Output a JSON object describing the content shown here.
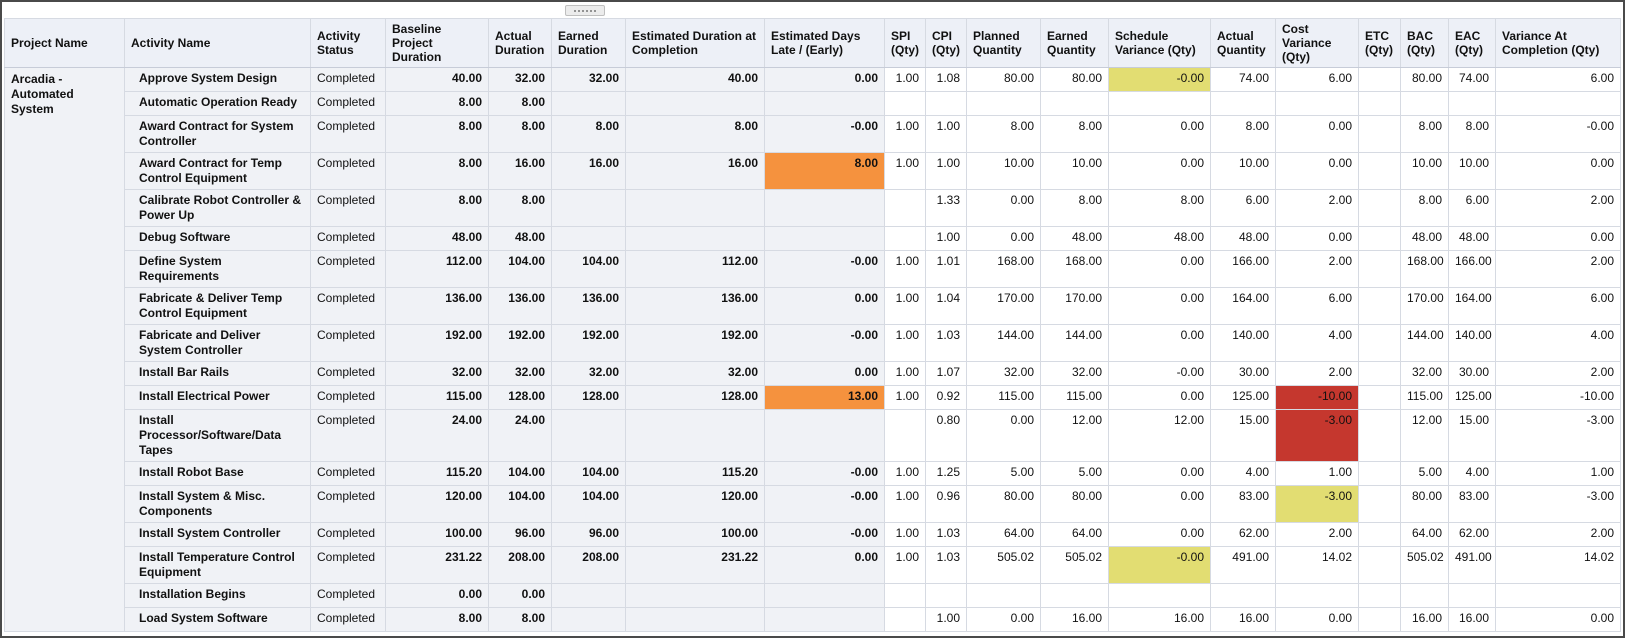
{
  "project": {
    "name": "Arcadia - Automated System"
  },
  "colors": {
    "yellow": "#e2dd72",
    "orange": "#f5923e",
    "red": "#c5372e",
    "left_bg": "#f0f2f6",
    "header_bg": "#edf0f7"
  },
  "table": {
    "headers": [
      "Project Name",
      "Activity Name",
      "Activity Status",
      "Baseline Project Duration",
      "Actual Duration",
      "Earned Duration",
      "Estimated Duration at Completion",
      "Estimated Days Late / (Early)",
      "SPI (Qty)",
      "CPI (Qty)",
      "Planned Quantity",
      "Earned Quantity",
      "Schedule Variance (Qty)",
      "Actual Quantity",
      "Cost Variance (Qty)",
      "ETC (Qty)",
      "BAC (Qty)",
      "EAC (Qty)",
      "Variance At Completion (Qty)"
    ],
    "rows": [
      {
        "activity": "Approve System Design",
        "status": "Completed",
        "baseline": "40.00",
        "actual_dur": "32.00",
        "earned_dur": "32.00",
        "est_completion": "40.00",
        "days_late": "0.00",
        "spi": "1.00",
        "cpi": "1.08",
        "planned_qty": "80.00",
        "earned_qty": "80.00",
        "sched_var": "-0.00",
        "actual_qty": "74.00",
        "cost_var": "6.00",
        "etc": "",
        "bac": "80.00",
        "eac": "74.00",
        "vac": "6.00",
        "hl": {
          "sched_var": "yellow"
        }
      },
      {
        "activity": "Automatic Operation Ready",
        "status": "Completed",
        "baseline": "8.00",
        "actual_dur": "8.00",
        "earned_dur": "",
        "est_completion": "",
        "days_late": "",
        "spi": "",
        "cpi": "",
        "planned_qty": "",
        "earned_qty": "",
        "sched_var": "",
        "actual_qty": "",
        "cost_var": "",
        "etc": "",
        "bac": "",
        "eac": "",
        "vac": ""
      },
      {
        "activity": "Award Contract for System Controller",
        "status": "Completed",
        "baseline": "8.00",
        "actual_dur": "8.00",
        "earned_dur": "8.00",
        "est_completion": "8.00",
        "days_late": "-0.00",
        "spi": "1.00",
        "cpi": "1.00",
        "planned_qty": "8.00",
        "earned_qty": "8.00",
        "sched_var": "0.00",
        "actual_qty": "8.00",
        "cost_var": "0.00",
        "etc": "",
        "bac": "8.00",
        "eac": "8.00",
        "vac": "-0.00"
      },
      {
        "activity": "Award Contract for Temp Control Equipment",
        "status": "Completed",
        "baseline": "8.00",
        "actual_dur": "16.00",
        "earned_dur": "16.00",
        "est_completion": "16.00",
        "days_late": "8.00",
        "spi": "1.00",
        "cpi": "1.00",
        "planned_qty": "10.00",
        "earned_qty": "10.00",
        "sched_var": "0.00",
        "actual_qty": "10.00",
        "cost_var": "0.00",
        "etc": "",
        "bac": "10.00",
        "eac": "10.00",
        "vac": "0.00",
        "hl": {
          "days_late": "orange"
        }
      },
      {
        "activity": "Calibrate Robot Controller & Power Up",
        "status": "Completed",
        "baseline": "8.00",
        "actual_dur": "8.00",
        "earned_dur": "",
        "est_completion": "",
        "days_late": "",
        "spi": "",
        "cpi": "1.33",
        "planned_qty": "0.00",
        "earned_qty": "8.00",
        "sched_var": "8.00",
        "actual_qty": "6.00",
        "cost_var": "2.00",
        "etc": "",
        "bac": "8.00",
        "eac": "6.00",
        "vac": "2.00"
      },
      {
        "activity": "Debug Software",
        "status": "Completed",
        "baseline": "48.00",
        "actual_dur": "48.00",
        "earned_dur": "",
        "est_completion": "",
        "days_late": "",
        "spi": "",
        "cpi": "1.00",
        "planned_qty": "0.00",
        "earned_qty": "48.00",
        "sched_var": "48.00",
        "actual_qty": "48.00",
        "cost_var": "0.00",
        "etc": "",
        "bac": "48.00",
        "eac": "48.00",
        "vac": "0.00"
      },
      {
        "activity": "Define System Requirements",
        "status": "Completed",
        "baseline": "112.00",
        "actual_dur": "104.00",
        "earned_dur": "104.00",
        "est_completion": "112.00",
        "days_late": "-0.00",
        "spi": "1.00",
        "cpi": "1.01",
        "planned_qty": "168.00",
        "earned_qty": "168.00",
        "sched_var": "0.00",
        "actual_qty": "166.00",
        "cost_var": "2.00",
        "etc": "",
        "bac": "168.00",
        "eac": "166.00",
        "vac": "2.00"
      },
      {
        "activity": "Fabricate & Deliver Temp Control Equipment",
        "status": "Completed",
        "baseline": "136.00",
        "actual_dur": "136.00",
        "earned_dur": "136.00",
        "est_completion": "136.00",
        "days_late": "0.00",
        "spi": "1.00",
        "cpi": "1.04",
        "planned_qty": "170.00",
        "earned_qty": "170.00",
        "sched_var": "0.00",
        "actual_qty": "164.00",
        "cost_var": "6.00",
        "etc": "",
        "bac": "170.00",
        "eac": "164.00",
        "vac": "6.00"
      },
      {
        "activity": "Fabricate and Deliver System Controller",
        "status": "Completed",
        "baseline": "192.00",
        "actual_dur": "192.00",
        "earned_dur": "192.00",
        "est_completion": "192.00",
        "days_late": "-0.00",
        "spi": "1.00",
        "cpi": "1.03",
        "planned_qty": "144.00",
        "earned_qty": "144.00",
        "sched_var": "0.00",
        "actual_qty": "140.00",
        "cost_var": "4.00",
        "etc": "",
        "bac": "144.00",
        "eac": "140.00",
        "vac": "4.00"
      },
      {
        "activity": "Install Bar Rails",
        "status": "Completed",
        "baseline": "32.00",
        "actual_dur": "32.00",
        "earned_dur": "32.00",
        "est_completion": "32.00",
        "days_late": "0.00",
        "spi": "1.00",
        "cpi": "1.07",
        "planned_qty": "32.00",
        "earned_qty": "32.00",
        "sched_var": "-0.00",
        "actual_qty": "30.00",
        "cost_var": "2.00",
        "etc": "",
        "bac": "32.00",
        "eac": "30.00",
        "vac": "2.00"
      },
      {
        "activity": "Install Electrical Power",
        "status": "Completed",
        "baseline": "115.00",
        "actual_dur": "128.00",
        "earned_dur": "128.00",
        "est_completion": "128.00",
        "days_late": "13.00",
        "spi": "1.00",
        "cpi": "0.92",
        "planned_qty": "115.00",
        "earned_qty": "115.00",
        "sched_var": "0.00",
        "actual_qty": "125.00",
        "cost_var": "-10.00",
        "etc": "",
        "bac": "115.00",
        "eac": "125.00",
        "vac": "-10.00",
        "hl": {
          "days_late": "orange",
          "cost_var": "red"
        }
      },
      {
        "activity": "Install Processor/Software/Data Tapes",
        "status": "Completed",
        "baseline": "24.00",
        "actual_dur": "24.00",
        "earned_dur": "",
        "est_completion": "",
        "days_late": "",
        "spi": "",
        "cpi": "0.80",
        "planned_qty": "0.00",
        "earned_qty": "12.00",
        "sched_var": "12.00",
        "actual_qty": "15.00",
        "cost_var": "-3.00",
        "etc": "",
        "bac": "12.00",
        "eac": "15.00",
        "vac": "-3.00",
        "hl": {
          "cost_var": "red"
        }
      },
      {
        "activity": "Install Robot Base",
        "status": "Completed",
        "baseline": "115.20",
        "actual_dur": "104.00",
        "earned_dur": "104.00",
        "est_completion": "115.20",
        "days_late": "-0.00",
        "spi": "1.00",
        "cpi": "1.25",
        "planned_qty": "5.00",
        "earned_qty": "5.00",
        "sched_var": "0.00",
        "actual_qty": "4.00",
        "cost_var": "1.00",
        "etc": "",
        "bac": "5.00",
        "eac": "4.00",
        "vac": "1.00"
      },
      {
        "activity": "Install System & Misc. Components",
        "status": "Completed",
        "baseline": "120.00",
        "actual_dur": "104.00",
        "earned_dur": "104.00",
        "est_completion": "120.00",
        "days_late": "-0.00",
        "spi": "1.00",
        "cpi": "0.96",
        "planned_qty": "80.00",
        "earned_qty": "80.00",
        "sched_var": "0.00",
        "actual_qty": "83.00",
        "cost_var": "-3.00",
        "etc": "",
        "bac": "80.00",
        "eac": "83.00",
        "vac": "-3.00",
        "hl": {
          "cost_var": "yellow"
        }
      },
      {
        "activity": "Install System Controller",
        "status": "Completed",
        "baseline": "100.00",
        "actual_dur": "96.00",
        "earned_dur": "96.00",
        "est_completion": "100.00",
        "days_late": "-0.00",
        "spi": "1.00",
        "cpi": "1.03",
        "planned_qty": "64.00",
        "earned_qty": "64.00",
        "sched_var": "0.00",
        "actual_qty": "62.00",
        "cost_var": "2.00",
        "etc": "",
        "bac": "64.00",
        "eac": "62.00",
        "vac": "2.00"
      },
      {
        "activity": "Install Temperature Control Equipment",
        "status": "Completed",
        "baseline": "231.22",
        "actual_dur": "208.00",
        "earned_dur": "208.00",
        "est_completion": "231.22",
        "days_late": "0.00",
        "spi": "1.00",
        "cpi": "1.03",
        "planned_qty": "505.02",
        "earned_qty": "505.02",
        "sched_var": "-0.00",
        "actual_qty": "491.00",
        "cost_var": "14.02",
        "etc": "",
        "bac": "505.02",
        "eac": "491.00",
        "vac": "14.02",
        "hl": {
          "sched_var": "yellow"
        }
      },
      {
        "activity": "Installation Begins",
        "status": "Completed",
        "baseline": "0.00",
        "actual_dur": "0.00",
        "earned_dur": "",
        "est_completion": "",
        "days_late": "",
        "spi": "",
        "cpi": "",
        "planned_qty": "",
        "earned_qty": "",
        "sched_var": "",
        "actual_qty": "",
        "cost_var": "",
        "etc": "",
        "bac": "",
        "eac": "",
        "vac": ""
      },
      {
        "activity": "Load System Software",
        "status": "Completed",
        "baseline": "8.00",
        "actual_dur": "8.00",
        "earned_dur": "",
        "est_completion": "",
        "days_late": "",
        "spi": "",
        "cpi": "1.00",
        "planned_qty": "0.00",
        "earned_qty": "16.00",
        "sched_var": "16.00",
        "actual_qty": "16.00",
        "cost_var": "0.00",
        "etc": "",
        "bac": "16.00",
        "eac": "16.00",
        "vac": "0.00"
      }
    ]
  }
}
